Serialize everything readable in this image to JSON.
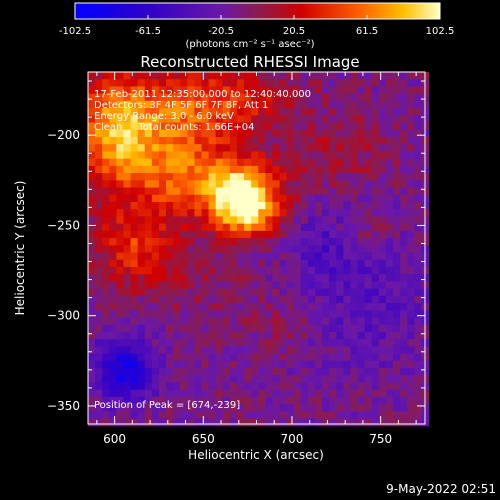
{
  "chart_data": {
    "type": "heatmap",
    "title": "Reconstructed RHESSI Image",
    "xlabel": "Heliocentric X (arcsec)",
    "ylabel": "Heliocentric Y (arcsec)",
    "xlim": [
      585,
      775
    ],
    "ylim": [
      -360,
      -165
    ],
    "x_ticks": [
      600,
      650,
      700,
      750
    ],
    "y_ticks": [
      -200,
      -250,
      -300,
      -350
    ],
    "colorbar": {
      "range": [
        -102.5,
        102.5
      ],
      "ticks": [
        "-102.5",
        "-61.5",
        "-20.5",
        "20.5",
        "61.5",
        "102.5"
      ],
      "unit": "(photons cm⁻² s⁻¹ asec⁻²)"
    },
    "annotations": [
      "17-Feb-2011 12:35:00.000 to 12:40:40.000",
      "Detectors: 3F 4F 5F 6F 7F 8F, Att 1",
      "Energy Range: 3.0 - 6.0 keV",
      "Clean     Total counts: 1.66E+04"
    ],
    "peak_label": "Position of Peak = [674,-239]",
    "sources": [
      {
        "x": 674,
        "y": -239,
        "amp": 108,
        "sx": 12,
        "sy": 12
      },
      {
        "x": 660,
        "y": -228,
        "amp": 55,
        "sx": 24,
        "sy": 14
      },
      {
        "x": 622,
        "y": -205,
        "amp": 65,
        "sx": 28,
        "sy": 22
      },
      {
        "x": 600,
        "y": -195,
        "amp": 50,
        "sx": 14,
        "sy": 22
      },
      {
        "x": 612,
        "y": -262,
        "amp": 50,
        "sx": 16,
        "sy": 14
      },
      {
        "x": 660,
        "y": -180,
        "amp": 45,
        "sx": 30,
        "sy": 12
      },
      {
        "x": 730,
        "y": -210,
        "amp": 20,
        "sx": 18,
        "sy": 14
      },
      {
        "x": 740,
        "y": -255,
        "amp": 22,
        "sx": 10,
        "sy": 8
      },
      {
        "x": 695,
        "y": -305,
        "amp": 15,
        "sx": 14,
        "sy": 10
      },
      {
        "x": 648,
        "y": -285,
        "amp": 12,
        "sx": 22,
        "sy": 12
      },
      {
        "x": 606,
        "y": -330,
        "amp": -70,
        "sx": 12,
        "sy": 12
      },
      {
        "x": 740,
        "y": -290,
        "amp": -22,
        "sx": 30,
        "sy": 30
      },
      {
        "x": 720,
        "y": -260,
        "amp": -20,
        "sx": 14,
        "sy": 14
      }
    ],
    "background": -12
  },
  "timestamp": "9-May-2022 02:51"
}
